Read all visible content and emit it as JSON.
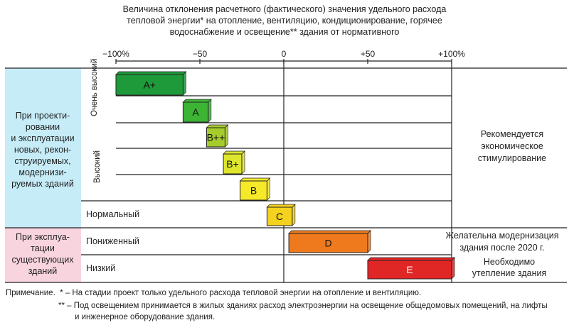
{
  "chart_data": {
    "type": "bar",
    "orientation": "horizontal-range",
    "title_lines": [
      "Величина отклонения расчетного (фактического) значения удельного расхода",
      "тепловой энергии* на отопление, вентиляцию, кондиционирование, горячее",
      "водоснабжение и освещение** здания от нормативного"
    ],
    "x_ticks": [
      "−100%",
      "−50",
      "0",
      "+50",
      "+100%"
    ],
    "x_tick_values": [
      -100,
      -50,
      0,
      50,
      100
    ],
    "xlim": [
      -100,
      100
    ],
    "bars": [
      {
        "label": "A+",
        "start": -100,
        "end": -60,
        "color": "#1f9a3a"
      },
      {
        "label": "A",
        "start": -60,
        "end": -45,
        "color": "#3cb535"
      },
      {
        "label": "B++",
        "start": -46,
        "end": -35,
        "color": "#a6cc2b"
      },
      {
        "label": "B+",
        "start": -36,
        "end": -25,
        "color": "#dde62c"
      },
      {
        "label": "B",
        "start": -26,
        "end": -10,
        "color": "#f5e92a"
      },
      {
        "label": "C",
        "start": -10,
        "end": 5,
        "color": "#f5d21e"
      },
      {
        "label": "D",
        "start": 3,
        "end": 50,
        "color": "#ef7a1e"
      },
      {
        "label": "E",
        "start": 50,
        "end": 100,
        "color": "#e12626"
      }
    ],
    "row_labels": {
      "very_high": "Очень высокий",
      "high": "Высокий",
      "normal": "Нормальный",
      "reduced": "Пониженный",
      "low": "Низкий"
    },
    "left_groups": [
      {
        "lines": [
          "При проекти-",
          "ровании",
          "и эксплуатации",
          "новых, рекон-",
          "струируемых,",
          "модернизи-",
          "руемых зданий"
        ],
        "color": "#c6ecf8"
      },
      {
        "lines": [
          "При эксплуа-",
          "тации",
          "существующих",
          "зданий"
        ],
        "color": "#f8d4df"
      }
    ],
    "right_annotations": [
      {
        "lines": [
          "Рекомендуется",
          "экономическое",
          "стимулирование"
        ]
      },
      {
        "lines": [
          "Желательна модернизация",
          "здания после 2020 г."
        ]
      },
      {
        "lines": [
          "Необходимо",
          "утепление здания"
        ]
      }
    ]
  },
  "notes": {
    "lead": "Примечание.",
    "n1": "* – На стадии проект только удельного расхода тепловой энергии на отопление и вентиляцию.",
    "n2a": "** – Под освещением принимается в жилых зданиях расход электроэнергии на освещение общедомовых помещений, на лифты",
    "n2b": "и инженерное оборудование здания."
  }
}
